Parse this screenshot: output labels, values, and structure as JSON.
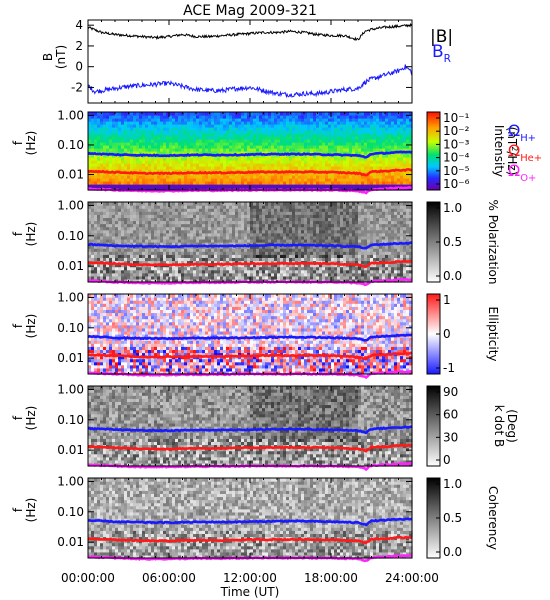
{
  "title": "ACE Mag 2009-321",
  "x_tick_labels": [
    "00:00:00",
    "06:00:00",
    "12:00:00",
    "18:00:00",
    "24:00:00"
  ],
  "x_axis_label": "Time (UT)",
  "colors": {
    "B_total": "#000000",
    "B_R": "#1a1aff",
    "H_plus": "#1a1aff",
    "He_plus": "#ff1a1a",
    "O_plus": "#ff22ff"
  },
  "chart_data": [
    {
      "type": "line",
      "panel": "magnetic-field",
      "ylabel": "B (nT)",
      "ylabel_lines": [
        "B",
        "(nT)"
      ],
      "x_range_hours": [
        0,
        24
      ],
      "ylim": [
        -3.5,
        4.5
      ],
      "y_ticks": [
        4,
        2,
        0,
        -2
      ],
      "legend": [
        {
          "label": "|B|",
          "color": "#000000"
        },
        {
          "label": "B",
          "subscript": "R",
          "color": "#1a1aff"
        }
      ],
      "series": [
        {
          "name": "|B|",
          "x_hours": [
            0,
            1,
            2,
            3,
            4,
            5,
            6,
            7,
            8,
            9,
            10,
            11,
            12,
            13,
            14,
            15,
            16,
            17,
            18,
            19,
            20,
            20.5,
            21,
            22,
            23,
            24
          ],
          "values": [
            3.8,
            3.3,
            3.1,
            3.0,
            2.9,
            2.8,
            2.9,
            3.1,
            2.9,
            2.9,
            3.0,
            3.1,
            3.2,
            3.3,
            3.3,
            3.4,
            3.3,
            3.1,
            3.0,
            3.0,
            2.6,
            3.4,
            3.6,
            3.8,
            3.9,
            4.0
          ]
        },
        {
          "name": "B_R",
          "x_hours": [
            0,
            0.5,
            1,
            2,
            3,
            4,
            5,
            6,
            7,
            8,
            9,
            10,
            11,
            12,
            13,
            14,
            15,
            16,
            17,
            18,
            19,
            20,
            20.5,
            21,
            22,
            23,
            23.5,
            24
          ],
          "values": [
            -1.8,
            -2.4,
            -2.3,
            -2.1,
            -1.9,
            -1.8,
            -1.7,
            -1.6,
            -1.9,
            -2.2,
            -2.3,
            -2.3,
            -2.1,
            -2.0,
            -2.3,
            -2.6,
            -2.7,
            -2.6,
            -2.6,
            -2.4,
            -2.2,
            -2.1,
            -1.5,
            -1.2,
            -0.8,
            -0.4,
            0.0,
            -0.5
          ]
        }
      ]
    },
    {
      "type": "heatmap",
      "panel": "power-spectrum",
      "ylabel_lines": [
        "f",
        "(Hz)"
      ],
      "y_scale": "log",
      "ylim": [
        0.003,
        1.3
      ],
      "y_ticks": [
        "1.00",
        "0.10",
        "0.01"
      ],
      "colorbar_label": "Intensity (nT²/Hz)",
      "colorbar_label_parts": [
        "Intensity",
        "(nT",
        "2",
        "/Hz)"
      ],
      "colorbar_ticks": [
        "10⁻¹",
        "10⁻²",
        "10⁻³",
        "10⁻⁴",
        "10⁻⁵",
        "10⁻⁶"
      ],
      "colormap": "rainbow",
      "ion_legend": [
        {
          "label": "Ω",
          "subscript": "H+",
          "color": "#1a1aff"
        },
        {
          "label": "Ω",
          "subscript": "He+",
          "color": "#ff1a1a"
        },
        {
          "label": "Ω",
          "subscript": "O+",
          "color": "#ff22ff"
        }
      ]
    },
    {
      "type": "heatmap",
      "panel": "polarization",
      "ylabel_lines": [
        "f",
        "(Hz)"
      ],
      "y_scale": "log",
      "y_ticks": [
        "1.00",
        "0.10",
        "0.01"
      ],
      "colorbar_label": "% Polarization",
      "colorbar_ticks": [
        "1.0",
        "0.5",
        "0.0"
      ],
      "colormap": "gray"
    },
    {
      "type": "heatmap",
      "panel": "ellipticity",
      "ylabel_lines": [
        "f",
        "(Hz)"
      ],
      "y_scale": "log",
      "y_ticks": [
        "1.00",
        "0.10",
        "0.01"
      ],
      "colorbar_label": "Ellipticity",
      "colorbar_ticks": [
        "1",
        "0",
        "-1"
      ],
      "colormap": "red-white-blue"
    },
    {
      "type": "heatmap",
      "panel": "k-dot-b",
      "ylabel_lines": [
        "f",
        "(Hz)"
      ],
      "y_scale": "log",
      "y_ticks": [
        "1.00",
        "0.10",
        "0.01"
      ],
      "colorbar_label": "k dot B (Deg)",
      "colorbar_label_lines": [
        "k dot B",
        "(Deg)"
      ],
      "colorbar_ticks": [
        "90",
        "60",
        "30",
        "0"
      ],
      "colormap": "gray"
    },
    {
      "type": "heatmap",
      "panel": "coherency",
      "ylabel_lines": [
        "f",
        "(Hz)"
      ],
      "y_scale": "log",
      "y_ticks": [
        "1.00",
        "0.10",
        "0.01"
      ],
      "colorbar_label": "Coherency",
      "colorbar_ticks": [
        "1.0",
        "0.5",
        "0.0"
      ],
      "colormap": "gray"
    }
  ],
  "gyrofrequency_lines": {
    "x_hours": [
      0,
      2,
      4,
      6,
      8,
      10,
      12,
      14,
      16,
      18,
      20,
      20.6,
      21,
      22,
      23,
      24
    ],
    "H_plus_hz": [
      0.052,
      0.047,
      0.045,
      0.044,
      0.046,
      0.046,
      0.047,
      0.049,
      0.049,
      0.047,
      0.044,
      0.038,
      0.05,
      0.053,
      0.056,
      0.058
    ],
    "He_plus_hz": [
      0.013,
      0.012,
      0.011,
      0.011,
      0.0115,
      0.0115,
      0.012,
      0.0122,
      0.0122,
      0.012,
      0.011,
      0.0095,
      0.0125,
      0.013,
      0.014,
      0.0145
    ],
    "O_plus_hz": [
      0.0033,
      0.003,
      0.0028,
      0.0028,
      0.0029,
      0.0029,
      0.003,
      0.003,
      0.003,
      0.003,
      0.0028,
      0.0024,
      0.0031,
      0.0033,
      0.0035,
      0.0036
    ]
  }
}
